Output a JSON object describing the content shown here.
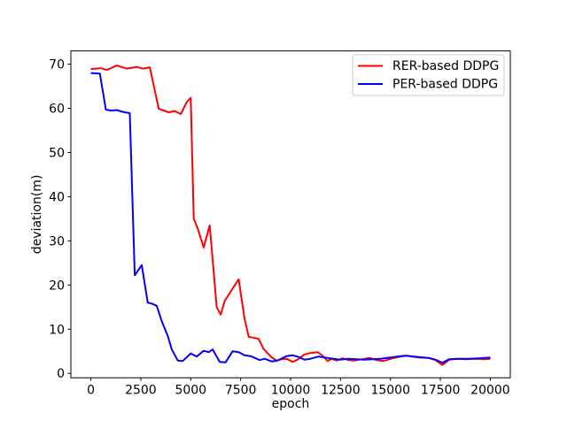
{
  "chart_data": {
    "type": "line",
    "title": "",
    "xlabel": "epoch",
    "ylabel": "deviation(m)",
    "xlim": [
      -1000,
      21000
    ],
    "ylim": [
      -1,
      73
    ],
    "xticks": [
      0,
      2500,
      5000,
      7500,
      10000,
      12500,
      15000,
      17500,
      20000
    ],
    "yticks": [
      0,
      10,
      20,
      30,
      40,
      50,
      60,
      70
    ],
    "grid": false,
    "legend_position": "upper right",
    "legend_border_color": "#cccccc",
    "legend_background": "#ffffff",
    "axis_color": "#000000",
    "series": [
      {
        "name": "RER-based DDPG",
        "color": "#ff0000",
        "x": [
          0,
          500,
          800,
          1300,
          1800,
          2300,
          2600,
          2950,
          3400,
          3900,
          4200,
          4500,
          4800,
          5000,
          5150,
          5350,
          5650,
          5950,
          6300,
          6500,
          6700,
          7100,
          7400,
          7700,
          7900,
          8200,
          8400,
          8650,
          9050,
          9300,
          9550,
          9800,
          10100,
          10350,
          10700,
          11000,
          11350,
          11600,
          11850,
          12050,
          12300,
          12600,
          12900,
          13200,
          13600,
          13950,
          14300,
          14650,
          15100,
          15500,
          15800,
          16400,
          16900,
          17250,
          17600,
          17950,
          18300,
          18800,
          19300,
          19650,
          20000
        ],
        "y": [
          68.9,
          69.1,
          68.7,
          69.7,
          69.0,
          69.4,
          69.0,
          69.3,
          59.9,
          59.1,
          59.4,
          58.7,
          61.4,
          62.4,
          35.0,
          32.8,
          28.5,
          33.5,
          15.0,
          13.3,
          16.4,
          19.2,
          21.3,
          12.3,
          8.3,
          8.0,
          7.8,
          5.5,
          3.6,
          2.9,
          3.2,
          3.3,
          2.6,
          3.1,
          4.3,
          4.6,
          4.8,
          4.0,
          2.8,
          3.3,
          2.9,
          3.4,
          3.0,
          2.9,
          3.2,
          3.5,
          3.0,
          2.8,
          3.4,
          3.8,
          4.0,
          3.6,
          3.5,
          3.0,
          1.9,
          3.1,
          3.3,
          3.2,
          3.3,
          3.2,
          3.3
        ]
      },
      {
        "name": "PER-based DDPG",
        "color": "#0000ff",
        "x": [
          0,
          450,
          750,
          1000,
          1300,
          1600,
          1950,
          2200,
          2550,
          2850,
          3050,
          3300,
          3550,
          3850,
          4050,
          4350,
          4600,
          5000,
          5300,
          5650,
          5900,
          6100,
          6450,
          6750,
          7100,
          7400,
          7700,
          8000,
          8450,
          8700,
          9050,
          9350,
          9800,
          10100,
          10400,
          10700,
          11000,
          11400,
          11700,
          12150,
          12450,
          12900,
          13300,
          13700,
          14100,
          14500,
          15000,
          15500,
          15800,
          16400,
          16900,
          17250,
          17600,
          17950,
          18400,
          18900,
          19400,
          20000
        ],
        "y": [
          68.0,
          67.9,
          59.7,
          59.5,
          59.6,
          59.2,
          58.9,
          22.2,
          24.5,
          16.0,
          15.8,
          15.3,
          11.8,
          8.5,
          5.4,
          2.9,
          2.8,
          4.5,
          3.8,
          5.1,
          4.8,
          5.4,
          2.6,
          2.5,
          5.0,
          4.8,
          4.1,
          3.9,
          3.0,
          3.3,
          2.7,
          2.9,
          3.9,
          4.1,
          3.7,
          3.1,
          3.3,
          3.8,
          3.6,
          3.3,
          3.1,
          3.3,
          3.2,
          3.1,
          3.2,
          3.3,
          3.6,
          3.9,
          4.0,
          3.7,
          3.5,
          3.1,
          2.4,
          3.2,
          3.3,
          3.3,
          3.4,
          3.6
        ]
      }
    ]
  }
}
